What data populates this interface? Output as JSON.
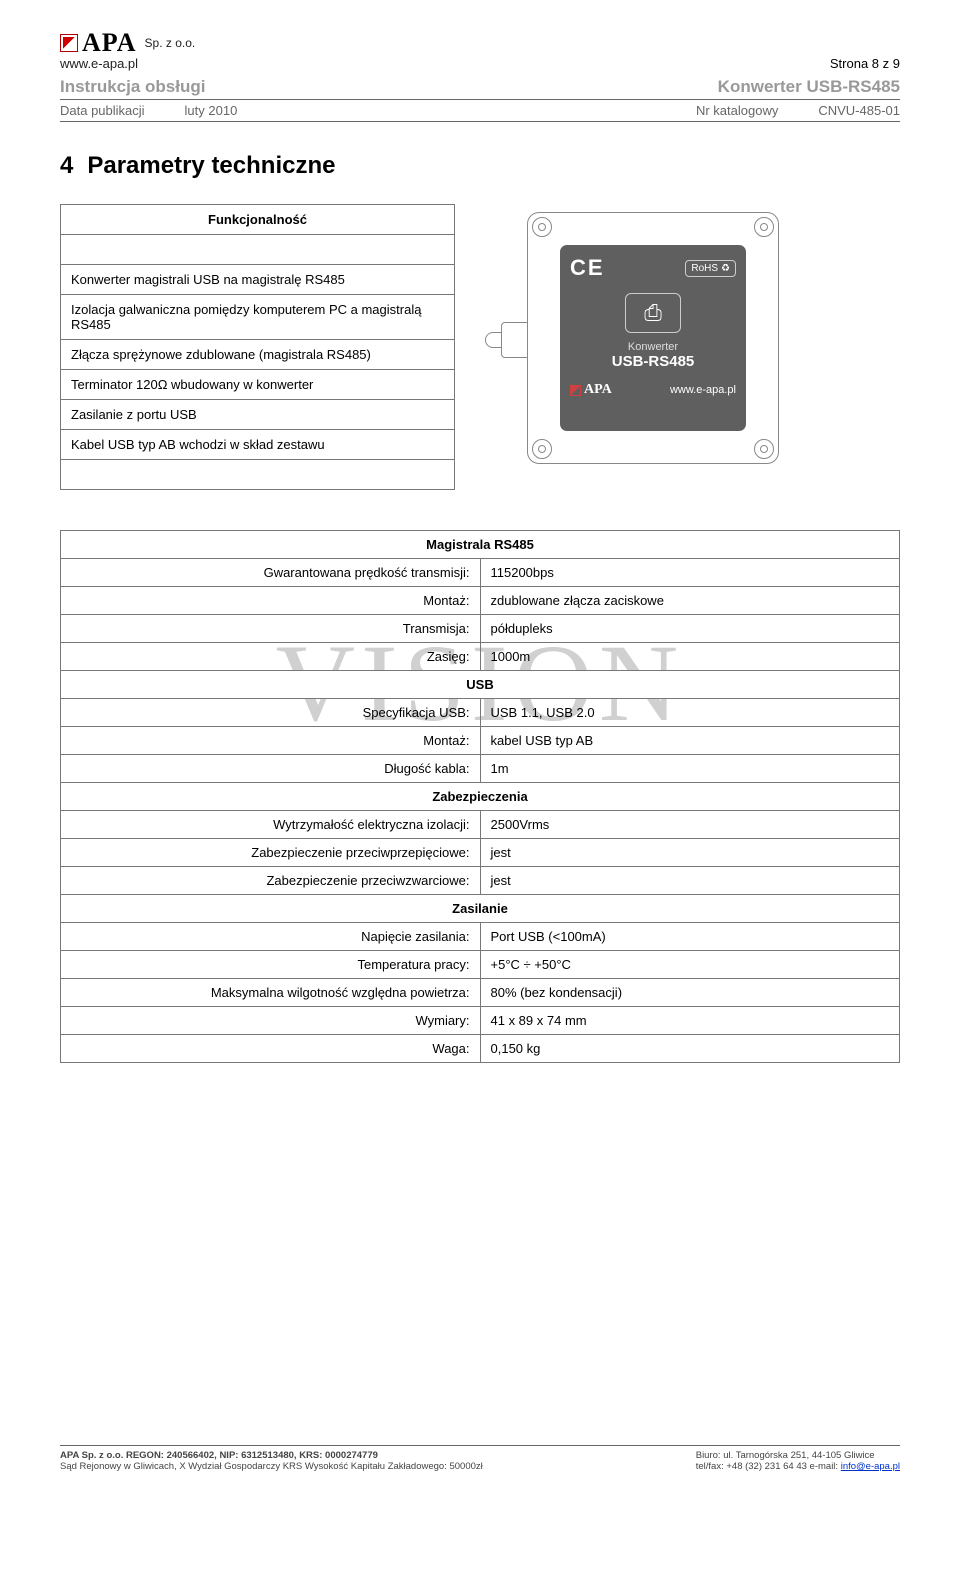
{
  "header": {
    "logo_text": "APA",
    "logo_suffix": "Sp. z o.o.",
    "logo_url": "www.e-apa.pl",
    "page_indicator": "Strona 8 z 9",
    "subtitle_left": "Instrukcja obsługi",
    "subtitle_right": "Konwerter USB-RS485",
    "meta_left_label": "Data publikacji",
    "meta_left_value": "luty 2010",
    "meta_right_label": "Nr katalogowy",
    "meta_right_value": "CNVU-485-01"
  },
  "section": {
    "number": "4",
    "title": "Parametry techniczne"
  },
  "func_table": {
    "header": "Funkcjonalność",
    "rows": [
      "Konwerter magistrali USB na magistralę RS485",
      "Izolacja galwaniczna pomiędzy komputerem PC a magistralą RS485",
      "Złącza sprężynowe zdublowane (magistrala RS485)",
      "Terminator 120Ω wbudowany w konwerter",
      "Zasilanie z portu USB",
      "Kabel USB typ AB wchodzi w skład zestawu"
    ]
  },
  "device_label": {
    "ce": "CE",
    "rohs": "RoHS",
    "konwerter": "Konwerter",
    "model": "USB-RS485",
    "brand": "APA",
    "url": "www.e-apa.pl"
  },
  "watermark": "VISION",
  "spec": {
    "sections": [
      {
        "title": "Magistrala RS485",
        "rows": [
          {
            "label": "Gwarantowana prędkość transmisji:",
            "value": "115200bps"
          },
          {
            "label": "Montaż:",
            "value": "zdublowane złącza zaciskowe"
          },
          {
            "label": "Transmisja:",
            "value": "półdupleks"
          },
          {
            "label": "Zasięg:",
            "value": "1000m"
          }
        ]
      },
      {
        "title": "USB",
        "rows": [
          {
            "label": "Specyfikacja USB:",
            "value": "USB 1.1, USB 2.0"
          },
          {
            "label": "Montaż:",
            "value": "kabel USB typ AB"
          },
          {
            "label": "Długość kabla:",
            "value": "1m"
          }
        ]
      },
      {
        "title": "Zabezpieczenia",
        "rows": [
          {
            "label": "Wytrzymałość elektryczna izolacji:",
            "value": "2500Vrms"
          },
          {
            "label": "Zabezpieczenie przeciwprzepięciowe:",
            "value": "jest"
          },
          {
            "label": "Zabezpieczenie przeciwzwarciowe:",
            "value": "jest"
          }
        ]
      },
      {
        "title": "Zasilanie",
        "rows": [
          {
            "label": "Napięcie zasilania:",
            "value": "Port USB (<100mA)"
          },
          {
            "label": "Temperatura pracy:",
            "value": "+5°C ÷ +50°C"
          },
          {
            "label": "Maksymalna wilgotność względna powietrza:",
            "value": "80% (bez kondensacji)"
          },
          {
            "label": "Wymiary:",
            "value": "41 x 89 x 74 mm"
          },
          {
            "label": "Waga:",
            "value": "0,150 kg"
          }
        ]
      }
    ]
  },
  "footer": {
    "left_line1": "APA Sp. z o.o. REGON: 240566402, NIP: 6312513480, KRS: 0000274779",
    "left_line2": "Sąd Rejonowy w Gliwicach, X Wydział Gospodarczy KRS Wysokość Kapitału Zakładowego: 50000zł",
    "right_line1": "Biuro:  ul. Tarnogórska 251, 44-105 Gliwice",
    "right_line2_prefix": "tel/fax: +48 (32)  231 64 43 e-mail: ",
    "right_line2_link": "info@e-apa.pl"
  },
  "colors": {
    "border": "#777777",
    "muted": "#999999",
    "text": "#000000",
    "watermark": "#d0d0d0",
    "link": "#0033cc",
    "plate": "#5f5f5f",
    "red": "#d00000"
  }
}
